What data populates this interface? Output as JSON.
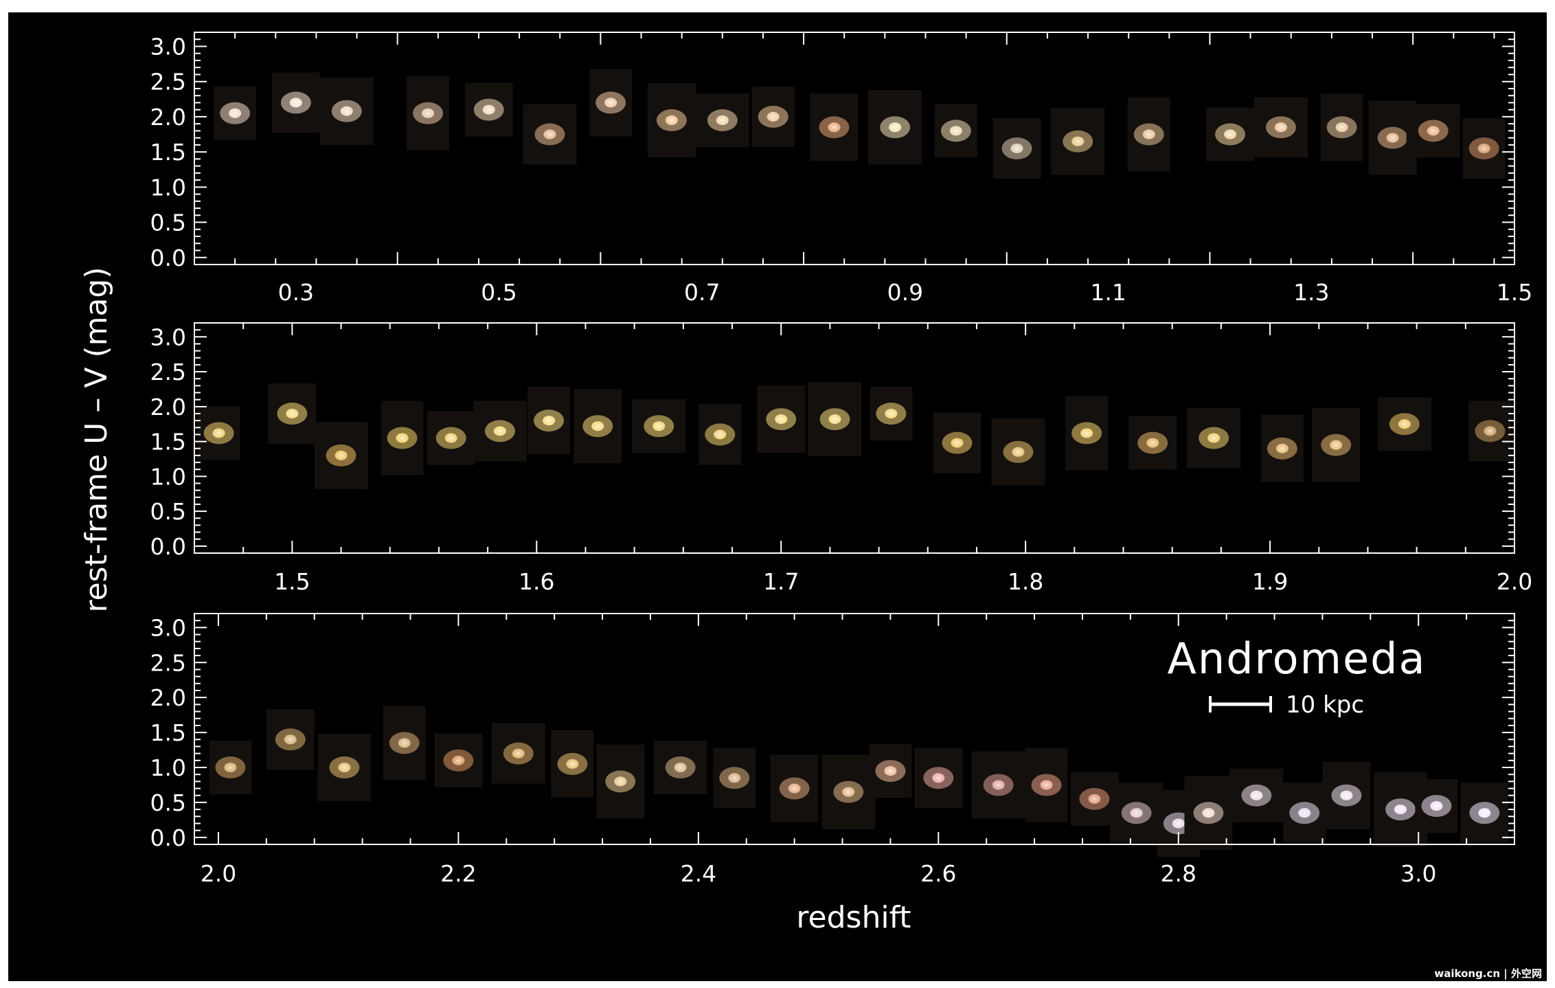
{
  "colors": {
    "page_background": "#ffffff",
    "plot_background": "#000000",
    "axis_color": "#ffffff"
  },
  "chart_data": [
    {
      "type": "scatter",
      "xlim": [
        0.2,
        1.5
      ],
      "ylim": [
        -0.1,
        3.2
      ],
      "xticks": [
        "0.3",
        "0.5",
        "0.7",
        "0.9",
        "1.1",
        "1.3",
        "1.5"
      ],
      "yticks": [
        "3.0",
        "2.5",
        "2.0",
        "1.5",
        "1.0",
        "0.5",
        "0.0"
      ],
      "grid": false,
      "points": [
        {
          "x": 0.24,
          "y": 2.05,
          "c": "#f2dcc8"
        },
        {
          "x": 0.3,
          "y": 2.2,
          "c": "#f4e2d2"
        },
        {
          "x": 0.35,
          "y": 2.08,
          "c": "#f0d8c0"
        },
        {
          "x": 0.43,
          "y": 2.05,
          "c": "#e8c8a8"
        },
        {
          "x": 0.49,
          "y": 2.1,
          "c": "#f2d8b8"
        },
        {
          "x": 0.55,
          "y": 1.75,
          "c": "#e8b890"
        },
        {
          "x": 0.61,
          "y": 2.2,
          "c": "#efcaa8"
        },
        {
          "x": 0.67,
          "y": 1.95,
          "c": "#f0c898"
        },
        {
          "x": 0.72,
          "y": 1.95,
          "c": "#f2d4a8"
        },
        {
          "x": 0.77,
          "y": 2.0,
          "c": "#eec898"
        },
        {
          "x": 0.83,
          "y": 1.85,
          "c": "#e8a878"
        },
        {
          "x": 0.89,
          "y": 1.85,
          "c": "#f2e4b8"
        },
        {
          "x": 0.95,
          "y": 1.8,
          "c": "#ecdcb4"
        },
        {
          "x": 1.01,
          "y": 1.55,
          "c": "#dcccb0"
        },
        {
          "x": 1.07,
          "y": 1.65,
          "c": "#e8c888"
        },
        {
          "x": 1.14,
          "y": 1.75,
          "c": "#e6c498"
        },
        {
          "x": 1.22,
          "y": 1.75,
          "c": "#f0d4a0"
        },
        {
          "x": 1.27,
          "y": 1.85,
          "c": "#ecc498"
        },
        {
          "x": 1.33,
          "y": 1.85,
          "c": "#eac8a0"
        },
        {
          "x": 1.38,
          "y": 1.7,
          "c": "#e8b488"
        },
        {
          "x": 1.42,
          "y": 1.8,
          "c": "#ecb080"
        },
        {
          "x": 1.47,
          "y": 1.55,
          "c": "#d89868"
        }
      ]
    },
    {
      "type": "scatter",
      "xlim": [
        1.46,
        2.0
      ],
      "ylim": [
        -0.1,
        3.2
      ],
      "xticks": [
        "1.5",
        "1.6",
        "1.7",
        "1.8",
        "1.9",
        "2.0"
      ],
      "yticks": [
        "3.0",
        "2.5",
        "2.0",
        "1.5",
        "1.0",
        "0.5",
        "0.0"
      ],
      "grid": false,
      "points": [
        {
          "x": 1.47,
          "y": 1.62,
          "c": "#f2d070"
        },
        {
          "x": 1.5,
          "y": 1.9,
          "c": "#f4d878"
        },
        {
          "x": 1.52,
          "y": 1.3,
          "c": "#f0c060"
        },
        {
          "x": 1.545,
          "y": 1.55,
          "c": "#f2d068"
        },
        {
          "x": 1.565,
          "y": 1.55,
          "c": "#f0d070"
        },
        {
          "x": 1.585,
          "y": 1.65,
          "c": "#f4d878"
        },
        {
          "x": 1.605,
          "y": 1.8,
          "c": "#f6dc80"
        },
        {
          "x": 1.625,
          "y": 1.72,
          "c": "#f4d878"
        },
        {
          "x": 1.65,
          "y": 1.72,
          "c": "#f4d878"
        },
        {
          "x": 1.675,
          "y": 1.6,
          "c": "#f0d070"
        },
        {
          "x": 1.7,
          "y": 1.82,
          "c": "#f6dc80"
        },
        {
          "x": 1.722,
          "y": 1.82,
          "c": "#f6dc80"
        },
        {
          "x": 1.745,
          "y": 1.9,
          "c": "#f4d878"
        },
        {
          "x": 1.772,
          "y": 1.48,
          "c": "#f0c868"
        },
        {
          "x": 1.797,
          "y": 1.35,
          "c": "#e8c070"
        },
        {
          "x": 1.825,
          "y": 1.62,
          "c": "#f4d070"
        },
        {
          "x": 1.852,
          "y": 1.48,
          "c": "#e8b868"
        },
        {
          "x": 1.877,
          "y": 1.55,
          "c": "#f0d070"
        },
        {
          "x": 1.905,
          "y": 1.4,
          "c": "#e8b870"
        },
        {
          "x": 1.927,
          "y": 1.45,
          "c": "#e8b870"
        },
        {
          "x": 1.955,
          "y": 1.75,
          "c": "#f0c868"
        },
        {
          "x": 1.99,
          "y": 1.65,
          "c": "#c8a060"
        }
      ]
    },
    {
      "type": "scatter",
      "xlim": [
        1.98,
        3.08
      ],
      "ylim": [
        -0.1,
        3.2
      ],
      "xticks": [
        "2.0",
        "2.2",
        "2.4",
        "2.6",
        "2.8",
        "3.0"
      ],
      "yticks": [
        "3.0",
        "2.5",
        "2.0",
        "1.5",
        "1.0",
        "0.5",
        "0.0"
      ],
      "grid": false,
      "xlabel": "redshift",
      "points": [
        {
          "x": 2.01,
          "y": 1.0,
          "c": "#d8a868"
        },
        {
          "x": 2.06,
          "y": 1.4,
          "c": "#d8b070"
        },
        {
          "x": 2.105,
          "y": 1.0,
          "c": "#e8c070"
        },
        {
          "x": 2.155,
          "y": 1.35,
          "c": "#d8b078"
        },
        {
          "x": 2.2,
          "y": 1.1,
          "c": "#d89860"
        },
        {
          "x": 2.25,
          "y": 1.2,
          "c": "#e0b068"
        },
        {
          "x": 2.295,
          "y": 1.05,
          "c": "#e8c070"
        },
        {
          "x": 2.335,
          "y": 0.8,
          "c": "#e8c890"
        },
        {
          "x": 2.385,
          "y": 1.0,
          "c": "#d8b888"
        },
        {
          "x": 2.43,
          "y": 0.85,
          "c": "#d8b080"
        },
        {
          "x": 2.48,
          "y": 0.7,
          "c": "#e0a880"
        },
        {
          "x": 2.525,
          "y": 0.65,
          "c": "#e0b888"
        },
        {
          "x": 2.56,
          "y": 0.95,
          "c": "#f0b898"
        },
        {
          "x": 2.6,
          "y": 0.85,
          "c": "#e8a8a0"
        },
        {
          "x": 2.65,
          "y": 0.75,
          "c": "#e0a098"
        },
        {
          "x": 2.69,
          "y": 0.75,
          "c": "#e8a088"
        },
        {
          "x": 2.73,
          "y": 0.55,
          "c": "#e09878"
        },
        {
          "x": 2.765,
          "y": 0.35,
          "c": "#e0c8c8"
        },
        {
          "x": 2.8,
          "y": 0.2,
          "c": "#e8d8e8"
        },
        {
          "x": 2.825,
          "y": 0.35,
          "c": "#f0d8d0"
        },
        {
          "x": 2.865,
          "y": 0.6,
          "c": "#f0e0e8"
        },
        {
          "x": 2.905,
          "y": 0.35,
          "c": "#e8e0f0"
        },
        {
          "x": 2.94,
          "y": 0.6,
          "c": "#f0e4f0"
        },
        {
          "x": 2.985,
          "y": 0.4,
          "c": "#f0e4f4"
        },
        {
          "x": 3.015,
          "y": 0.45,
          "c": "#f0e4f4"
        },
        {
          "x": 3.055,
          "y": 0.35,
          "c": "#f0e8f8"
        }
      ]
    }
  ],
  "shared": {
    "ylabel": "rest-frame U – V (mag)",
    "annotation": "Andromeda",
    "scale_bar_label": "10 kpc",
    "credit": "waikong.cn | 外空网"
  }
}
